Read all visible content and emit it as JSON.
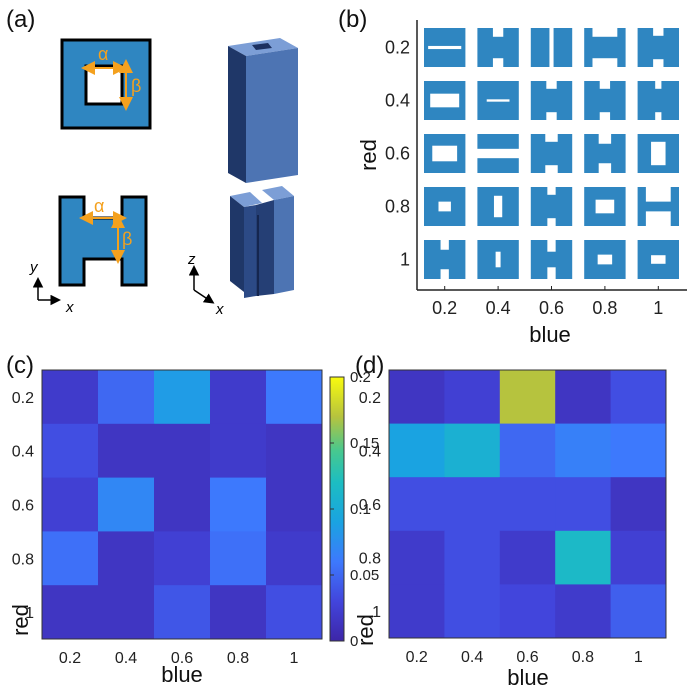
{
  "panel_labels": {
    "a": "(a)",
    "b": "(b)",
    "c": "(c)",
    "d": "(d)"
  },
  "panel_a": {
    "alpha": "α",
    "beta": "β",
    "axis_x": "x",
    "axis_y": "y",
    "axis_z": "z",
    "colors": {
      "fill": "#2f86c1",
      "outline": "#000000",
      "arrow": "#f4a11e",
      "pillar_light": "#6b8ec8",
      "pillar_dark": "#1f3768"
    }
  },
  "panel_b": {
    "xlabel": "blue",
    "ylabel": "red",
    "xticks": [
      "0.2",
      "0.4",
      "0.6",
      "0.8",
      "1"
    ],
    "yticks": [
      "0.2",
      "0.4",
      "0.6",
      "0.8",
      "1"
    ],
    "cell_color": "#2f86c1"
  },
  "panel_c": {
    "xlabel": "blue",
    "ylabel": "red",
    "xticks": [
      "0.2",
      "0.4",
      "0.6",
      "0.8",
      "1"
    ],
    "yticks": [
      "0.2",
      "0.4",
      "0.6",
      "0.8",
      "1"
    ],
    "colorbar_ticks": [
      "0",
      "0.05",
      "0.1",
      "0.15",
      "0.2"
    ]
  },
  "panel_d": {
    "xlabel": "blue",
    "ylabel": "red",
    "xticks": [
      "0.2",
      "0.4",
      "0.6",
      "0.8",
      "1"
    ],
    "yticks": [
      "0.2",
      "0.4",
      "0.6",
      "0.8",
      "1"
    ]
  },
  "chart_data": [
    {
      "type": "heatmap",
      "panel": "c",
      "x": [
        0.2,
        0.4,
        0.6,
        0.8,
        1
      ],
      "y": [
        0.2,
        0.4,
        0.6,
        0.8,
        1
      ],
      "xlabel": "blue",
      "ylabel": "red",
      "zlim": [
        0,
        0.2
      ],
      "colormap": "parula",
      "values": [
        [
          0.02,
          0.05,
          0.085,
          0.02,
          0.06
        ],
        [
          0.035,
          0.015,
          0.015,
          0.02,
          0.015
        ],
        [
          0.025,
          0.07,
          0.015,
          0.06,
          0.015
        ],
        [
          0.055,
          0.015,
          0.025,
          0.055,
          0.02
        ],
        [
          0.015,
          0.015,
          0.04,
          0.015,
          0.035
        ]
      ]
    },
    {
      "type": "heatmap",
      "panel": "d",
      "x": [
        0.2,
        0.4,
        0.6,
        0.8,
        1
      ],
      "y": [
        0.2,
        0.4,
        0.6,
        0.8,
        1
      ],
      "xlabel": "blue",
      "ylabel": "red",
      "zlim": [
        0,
        0.2
      ],
      "colormap": "parula",
      "values": [
        [
          0.015,
          0.025,
          0.17,
          0.015,
          0.035
        ],
        [
          0.09,
          0.105,
          0.05,
          0.065,
          0.06
        ],
        [
          0.035,
          0.035,
          0.035,
          0.035,
          0.015
        ],
        [
          0.02,
          0.035,
          0.02,
          0.115,
          0.025
        ],
        [
          0.02,
          0.035,
          0.03,
          0.02,
          0.045
        ]
      ]
    }
  ]
}
